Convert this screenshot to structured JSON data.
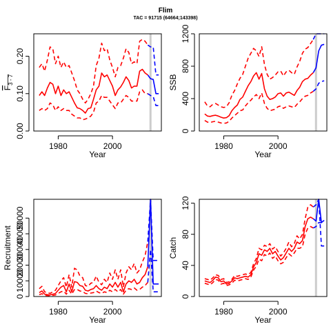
{
  "title": "Flim",
  "subtitle": "TAC = 91715 (64664;143398)",
  "chart_data": [
    {
      "type": "line",
      "xlabel": "Year",
      "ylabel": "F",
      "ylabel_sub": "3 - 7",
      "xlim": [
        1971,
        2018
      ],
      "ylim": [
        0,
        0.26
      ],
      "xticks": [
        1980,
        2000
      ],
      "yticks": [
        0.0,
        0.1,
        0.2
      ],
      "ytick_labels": [
        "0.00",
        "0.10",
        "0.20"
      ],
      "vline": 2014,
      "years": [
        1973,
        1974,
        1975,
        1976,
        1977,
        1978,
        1979,
        1980,
        1981,
        1982,
        1983,
        1984,
        1985,
        1986,
        1987,
        1988,
        1989,
        1990,
        1991,
        1992,
        1993,
        1994,
        1995,
        1996,
        1997,
        1998,
        1999,
        2000,
        2001,
        2002,
        2003,
        2004,
        2005,
        2006,
        2007,
        2008,
        2009,
        2010,
        2011,
        2012,
        2013
      ],
      "series": [
        {
          "color": "#ff0000",
          "dash": false,
          "values": [
            0.095,
            0.105,
            0.095,
            0.115,
            0.13,
            0.125,
            0.1,
            0.12,
            0.095,
            0.11,
            0.1,
            0.105,
            0.09,
            0.075,
            0.062,
            0.06,
            0.055,
            0.048,
            0.06,
            0.062,
            0.085,
            0.11,
            0.12,
            0.155,
            0.145,
            0.15,
            0.135,
            0.12,
            0.095,
            0.11,
            0.118,
            0.13,
            0.145,
            0.135,
            0.115,
            0.12,
            0.12,
            0.16,
            0.165,
            0.155,
            0.15
          ]
        },
        {
          "color": "#ff0000",
          "dash": true,
          "values": [
            0.17,
            0.18,
            0.16,
            0.19,
            0.225,
            0.22,
            0.18,
            0.2,
            0.17,
            0.185,
            0.17,
            0.175,
            0.155,
            0.135,
            0.11,
            0.1,
            0.085,
            0.075,
            0.085,
            0.1,
            0.12,
            0.175,
            0.195,
            0.235,
            0.215,
            0.22,
            0.19,
            0.17,
            0.145,
            0.17,
            0.175,
            0.195,
            0.22,
            0.21,
            0.18,
            0.185,
            0.18,
            0.24,
            0.245,
            0.24,
            0.23
          ]
        },
        {
          "color": "#ff0000",
          "dash": true,
          "values": [
            0.055,
            0.06,
            0.055,
            0.06,
            0.075,
            0.07,
            0.055,
            0.065,
            0.055,
            0.06,
            0.055,
            0.055,
            0.045,
            0.04,
            0.035,
            0.035,
            0.03,
            0.032,
            0.035,
            0.04,
            0.05,
            0.075,
            0.08,
            0.095,
            0.09,
            0.09,
            0.08,
            0.07,
            0.06,
            0.075,
            0.075,
            0.085,
            0.095,
            0.09,
            0.08,
            0.08,
            0.08,
            0.105,
            0.11,
            0.1,
            0.1
          ]
        }
      ],
      "projection_years": [
        2013,
        2014,
        2015,
        2016,
        2017
      ],
      "projection": [
        {
          "color": "#0000ff",
          "dash": false,
          "values": [
            0.15,
            0.14,
            0.138,
            0.1,
            0.1
          ]
        },
        {
          "color": "#0000ff",
          "dash": true,
          "values": [
            0.23,
            0.225,
            0.225,
            0.15,
            0.15
          ]
        },
        {
          "color": "#0000ff",
          "dash": true,
          "values": [
            0.1,
            0.095,
            0.092,
            0.068,
            0.068
          ]
        }
      ]
    },
    {
      "type": "line",
      "xlabel": "Year",
      "ylabel": "SSB",
      "xlim": [
        1971,
        2018
      ],
      "ylim": [
        0,
        1200
      ],
      "xticks": [
        1980,
        2000
      ],
      "yticks": [
        0,
        400,
        800,
        1200
      ],
      "ytick_labels": [
        "0",
        "400",
        "800",
        "1200"
      ],
      "vline": 2014,
      "years": [
        1973,
        1974,
        1975,
        1976,
        1977,
        1978,
        1979,
        1980,
        1981,
        1982,
        1983,
        1984,
        1985,
        1986,
        1987,
        1988,
        1989,
        1990,
        1991,
        1992,
        1993,
        1994,
        1995,
        1996,
        1997,
        1998,
        1999,
        2000,
        2001,
        2002,
        2003,
        2004,
        2005,
        2006,
        2007,
        2008,
        2009,
        2010,
        2011,
        2012,
        2013
      ],
      "series": [
        {
          "color": "#ff0000",
          "dash": false,
          "values": [
            210,
            185,
            180,
            190,
            195,
            185,
            170,
            160,
            165,
            190,
            250,
            290,
            320,
            390,
            420,
            490,
            560,
            610,
            680,
            720,
            640,
            710,
            520,
            430,
            390,
            400,
            420,
            460,
            470,
            430,
            470,
            480,
            460,
            440,
            500,
            540,
            610,
            640,
            650,
            690,
            720
          ]
        },
        {
          "color": "#ff0000",
          "dash": true,
          "values": [
            360,
            310,
            300,
            330,
            340,
            320,
            300,
            290,
            300,
            350,
            440,
            500,
            580,
            650,
            700,
            800,
            900,
            960,
            1020,
            990,
            920,
            1040,
            820,
            700,
            640,
            660,
            690,
            730,
            740,
            680,
            730,
            750,
            720,
            700,
            790,
            860,
            960,
            1010,
            1030,
            1080,
            1130
          ]
        },
        {
          "color": "#ff0000",
          "dash": true,
          "values": [
            130,
            110,
            105,
            115,
            120,
            110,
            100,
            95,
            100,
            120,
            160,
            190,
            220,
            250,
            260,
            310,
            350,
            380,
            420,
            450,
            400,
            470,
            340,
            280,
            250,
            260,
            270,
            300,
            310,
            280,
            300,
            310,
            300,
            290,
            330,
            360,
            400,
            430,
            440,
            470,
            490
          ]
        }
      ],
      "projection_years": [
        2013,
        2014,
        2015,
        2016,
        2017
      ],
      "projection": [
        {
          "color": "#0000ff",
          "dash": false,
          "values": [
            720,
            780,
            990,
            1060,
            1070
          ]
        },
        {
          "color": "#0000ff",
          "dash": true,
          "values": [
            1130,
            1200,
            1200,
            1200,
            1200
          ]
        },
        {
          "color": "#0000ff",
          "dash": true,
          "values": [
            490,
            520,
            590,
            610,
            620
          ]
        }
      ]
    },
    {
      "type": "line",
      "xlabel": "Year",
      "ylabel": "Recruitment",
      "xlim": [
        1971,
        2018
      ],
      "ylim": [
        0,
        62000
      ],
      "xticks": [
        1980,
        2000
      ],
      "yticks": [
        0,
        10000,
        20000,
        30000,
        40000,
        50000
      ],
      "ytick_labels": [
        "0",
        "10000",
        "20000",
        "30000",
        "40000",
        "50000"
      ],
      "vline": 2014,
      "years": [
        1973,
        1974,
        1975,
        1976,
        1977,
        1978,
        1979,
        1980,
        1981,
        1982,
        1983,
        1984,
        1985,
        1986,
        1987,
        1988,
        1989,
        1990,
        1991,
        1992,
        1993,
        1994,
        1995,
        1996,
        1997,
        1998,
        1999,
        2000,
        2001,
        2002,
        2003,
        2004,
        2005,
        2006,
        2007,
        2008,
        2009,
        2010,
        2011,
        2012,
        2013
      ],
      "series": [
        {
          "color": "#ff0000",
          "dash": false,
          "values": [
            2500,
            3500,
            1500,
            1200,
            1000,
            1500,
            2000,
            4000,
            6000,
            7000,
            3000,
            8000,
            3000,
            9500,
            9000,
            7000,
            6500,
            4000,
            3500,
            4500,
            5000,
            7000,
            5000,
            4000,
            6000,
            5000,
            8000,
            6000,
            9000,
            6000,
            9000,
            3000,
            8000,
            10000,
            9000,
            11000,
            8000,
            9000,
            12000,
            14000,
            19000
          ]
        },
        {
          "color": "#ff0000",
          "dash": true,
          "values": [
            5000,
            6500,
            3000,
            2500,
            2000,
            3000,
            4000,
            7000,
            10000,
            12000,
            6000,
            14000,
            6000,
            18000,
            17000,
            13000,
            12000,
            7000,
            6500,
            8500,
            9000,
            13000,
            9000,
            7500,
            11000,
            9000,
            15000,
            11000,
            17000,
            11000,
            17000,
            6000,
            15000,
            19000,
            17000,
            21000,
            15000,
            17000,
            22000,
            26000,
            35000
          ]
        },
        {
          "color": "#ff0000",
          "dash": true,
          "values": [
            1200,
            1800,
            700,
            600,
            500,
            700,
            1000,
            2000,
            3000,
            3500,
            1500,
            4000,
            1500,
            4500,
            4500,
            3500,
            3200,
            2000,
            1800,
            2200,
            2500,
            3500,
            2500,
            2000,
            3000,
            2500,
            4000,
            3000,
            4500,
            3000,
            4500,
            1500,
            4000,
            5000,
            4500,
            5500,
            4000,
            4500,
            6000,
            7000,
            9000
          ]
        }
      ],
      "projection_years": [
        2013,
        2014,
        2015,
        2016,
        2017
      ],
      "projection": [
        {
          "color": "#0000ff",
          "dash": false,
          "values": [
            19000,
            62000,
            8000,
            8000,
            8000
          ]
        },
        {
          "color": "#0000ff",
          "dash": true,
          "values": [
            35000,
            62000,
            23000,
            23000,
            23000
          ]
        },
        {
          "color": "#0000ff",
          "dash": true,
          "values": [
            9000,
            30000,
            3000,
            3000,
            3000
          ]
        }
      ]
    },
    {
      "type": "line",
      "xlabel": "Year",
      "ylabel": "Catch",
      "xlim": [
        1971,
        2018
      ],
      "ylim": [
        0,
        125
      ],
      "xticks": [
        1980,
        2000
      ],
      "yticks": [
        0,
        40,
        80,
        120
      ],
      "ytick_labels": [
        "0",
        "40",
        "80",
        "120"
      ],
      "vline": 2014,
      "years": [
        1973,
        1974,
        1975,
        1976,
        1977,
        1978,
        1979,
        1980,
        1981,
        1982,
        1983,
        1984,
        1985,
        1986,
        1987,
        1988,
        1989,
        1990,
        1991,
        1992,
        1993,
        1994,
        1995,
        1996,
        1997,
        1998,
        1999,
        2000,
        2001,
        2002,
        2003,
        2004,
        2005,
        2006,
        2007,
        2008,
        2009,
        2010,
        2011,
        2012,
        2013
      ],
      "series": [
        {
          "color": "#ff0000",
          "dash": false,
          "values": [
            20,
            19,
            18,
            21,
            25,
            24,
            19,
            20,
            16,
            17,
            20,
            24,
            23,
            24,
            25,
            26,
            25,
            28,
            38,
            44,
            55,
            53,
            60,
            58,
            62,
            55,
            58,
            52,
            47,
            50,
            56,
            62,
            58,
            62,
            70,
            68,
            72,
            90,
            100,
            102,
            100
          ]
        },
        {
          "color": "#ff0000",
          "dash": true,
          "values": [
            23,
            22,
            21,
            24,
            28,
            27,
            22,
            23,
            18,
            19,
            22,
            27,
            26,
            27,
            28,
            29,
            28,
            31,
            42,
            49,
            62,
            60,
            66,
            64,
            68,
            61,
            64,
            58,
            52,
            56,
            62,
            70,
            64,
            68,
            78,
            74,
            80,
            100,
            115,
            118,
            115
          ]
        },
        {
          "color": "#ff0000",
          "dash": true,
          "values": [
            17,
            16,
            15,
            18,
            22,
            21,
            16,
            17,
            14,
            15,
            17,
            21,
            20,
            21,
            22,
            23,
            22,
            25,
            34,
            39,
            48,
            46,
            54,
            52,
            56,
            49,
            52,
            46,
            42,
            44,
            50,
            55,
            52,
            56,
            62,
            62,
            64,
            80,
            88,
            90,
            88
          ]
        }
      ],
      "projection_years": [
        2013,
        2014,
        2015,
        2016,
        2017
      ],
      "projection": [
        {
          "color": "#0000ff",
          "dash": false,
          "values": [
            100,
            97,
            125,
            95,
            98
          ]
        },
        {
          "color": "#0000ff",
          "dash": true,
          "values": [
            115,
            118,
            125,
            65,
            65
          ]
        },
        {
          "color": "#0000ff",
          "dash": true,
          "values": [
            88,
            90,
            95,
            95,
            95
          ]
        }
      ]
    }
  ]
}
